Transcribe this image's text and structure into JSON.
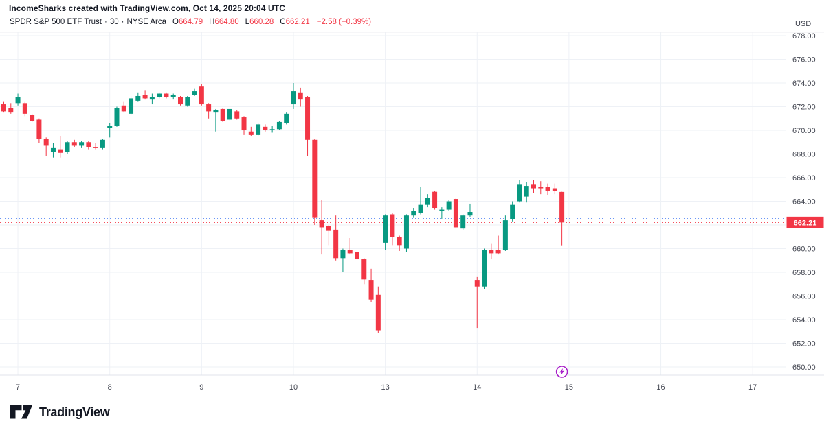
{
  "header": {
    "title": "IncomeSharks created with TradingView.com, Oct 14, 2025 20:04 UTC"
  },
  "legend": {
    "symbol": "SPDR S&P 500 ETF Trust",
    "separator": "·",
    "interval": "30",
    "exchange": "NYSE Arca",
    "open_label": "O",
    "open": "664.79",
    "high_label": "H",
    "high": "664.80",
    "low_label": "L",
    "low": "660.28",
    "close_label": "C",
    "close": "662.21",
    "change": "−2.58 (−0.39%)"
  },
  "price_axis": {
    "currency": "USD",
    "ticks": [
      "678.00",
      "676.00",
      "674.00",
      "672.00",
      "670.00",
      "668.00",
      "666.00",
      "664.00",
      "662.00",
      "660.00",
      "658.00",
      "656.00",
      "654.00",
      "652.00",
      "650.00"
    ],
    "last_price": "662.21"
  },
  "time_axis": {
    "labels": [
      "7",
      "8",
      "9",
      "10",
      "13",
      "14",
      "15",
      "16",
      "17"
    ]
  },
  "footer": {
    "brand": "TradingView"
  },
  "colors": {
    "up": "#089981",
    "down": "#f23645",
    "grid": "#eef1f6",
    "axis_text": "#434651",
    "badge_bg": "#f23645",
    "badge_text": "#ffffff",
    "prev_close_line": "#6a95f5",
    "marker": "#a81ec9",
    "separator": "#e0e3eb"
  },
  "chart_data": {
    "type": "candlestick",
    "title": "SPDR S&P 500 ETF Trust",
    "interval_minutes": 30,
    "exchange": "NYSE Arca",
    "currency": "USD",
    "ylim": [
      650,
      678
    ],
    "y_axis": {
      "min": 650,
      "max": 678,
      "step": 2
    },
    "price_line": 662.21,
    "prev_close_line": 662.55,
    "last_bar": {
      "o": 664.79,
      "h": 664.8,
      "l": 660.28,
      "c": 662.21,
      "change": -2.58,
      "change_pct": -0.39
    },
    "x_ticks": {
      "labels": [
        "7",
        "8",
        "9",
        "10",
        "13",
        "14",
        "15",
        "16",
        "17"
      ],
      "candle_indices": [
        2,
        15,
        28,
        41,
        54,
        67,
        80,
        93,
        106
      ]
    },
    "marker": {
      "symbol": "lightning",
      "candle_index": 79
    },
    "candles": [
      [
        672.2,
        672.4,
        671.5,
        671.6
      ],
      [
        671.9,
        672.3,
        671.4,
        671.5
      ],
      [
        672.3,
        673.1,
        672.1,
        672.8
      ],
      [
        672.3,
        672.4,
        671.2,
        671.4
      ],
      [
        671.3,
        671.4,
        670.7,
        670.8
      ],
      [
        670.9,
        671.0,
        668.9,
        669.3
      ],
      [
        669.3,
        669.4,
        667.8,
        668.7
      ],
      [
        668.2,
        668.9,
        667.7,
        668.5
      ],
      [
        668.4,
        669.5,
        667.7,
        668.1
      ],
      [
        668.2,
        669.1,
        668.0,
        669.0
      ],
      [
        669.0,
        669.2,
        668.6,
        668.7
      ],
      [
        668.7,
        669.1,
        668.5,
        669.0
      ],
      [
        669.0,
        669.1,
        668.4,
        668.6
      ],
      [
        668.6,
        668.9,
        668.4,
        668.5
      ],
      [
        668.5,
        669.3,
        668.4,
        669.2
      ],
      [
        670.2,
        670.6,
        669.4,
        670.4
      ],
      [
        670.4,
        672.0,
        670.3,
        671.9
      ],
      [
        672.1,
        672.4,
        671.5,
        671.6
      ],
      [
        671.4,
        672.9,
        671.3,
        672.7
      ],
      [
        672.5,
        673.2,
        672.4,
        672.9
      ],
      [
        673.0,
        673.4,
        672.6,
        672.7
      ],
      [
        672.6,
        673.1,
        672.2,
        672.8
      ],
      [
        672.8,
        673.2,
        672.7,
        673.1
      ],
      [
        673.1,
        673.2,
        672.7,
        672.8
      ],
      [
        672.8,
        673.1,
        672.6,
        673.0
      ],
      [
        672.8,
        672.9,
        672.1,
        672.2
      ],
      [
        672.1,
        672.9,
        672.0,
        672.8
      ],
      [
        673.0,
        673.5,
        672.9,
        673.3
      ],
      [
        673.7,
        673.9,
        672.1,
        672.2
      ],
      [
        672.2,
        672.3,
        671.0,
        671.6
      ],
      [
        671.5,
        671.8,
        669.9,
        671.7
      ],
      [
        671.8,
        671.9,
        670.7,
        670.8
      ],
      [
        670.9,
        671.8,
        670.8,
        671.8
      ],
      [
        671.6,
        671.7,
        670.9,
        671.0
      ],
      [
        671.1,
        671.2,
        669.6,
        670.0
      ],
      [
        669.9,
        670.3,
        669.5,
        669.6
      ],
      [
        669.6,
        670.6,
        669.5,
        670.5
      ],
      [
        670.3,
        670.5,
        669.9,
        670.0
      ],
      [
        670.0,
        670.4,
        669.8,
        670.1
      ],
      [
        670.1,
        670.8,
        670.0,
        670.7
      ],
      [
        670.6,
        671.5,
        670.5,
        671.4
      ],
      [
        672.2,
        674.0,
        671.8,
        673.3
      ],
      [
        673.2,
        673.6,
        672.0,
        672.6
      ],
      [
        672.8,
        672.9,
        667.8,
        669.2
      ],
      [
        669.2,
        669.3,
        662.0,
        662.6
      ],
      [
        662.4,
        664.1,
        659.5,
        661.8
      ],
      [
        661.9,
        662.0,
        660.3,
        661.5
      ],
      [
        661.6,
        662.8,
        659.0,
        659.2
      ],
      [
        659.2,
        660.0,
        658.0,
        659.9
      ],
      [
        659.9,
        660.9,
        659.5,
        659.6
      ],
      [
        659.7,
        660.0,
        659.0,
        659.1
      ],
      [
        659.1,
        659.2,
        657.0,
        657.4
      ],
      [
        657.3,
        658.3,
        655.5,
        655.7
      ],
      [
        656.1,
        656.8,
        652.9,
        653.1
      ],
      [
        660.5,
        662.9,
        659.9,
        662.8
      ],
      [
        662.9,
        663.0,
        660.3,
        661.0
      ],
      [
        661.0,
        661.1,
        659.8,
        660.3
      ],
      [
        660.0,
        662.9,
        659.7,
        662.8
      ],
      [
        662.8,
        663.4,
        662.6,
        663.2
      ],
      [
        663.0,
        665.2,
        662.9,
        663.7
      ],
      [
        663.7,
        664.6,
        663.5,
        664.3
      ],
      [
        664.8,
        664.9,
        663.3,
        663.4
      ],
      [
        663.2,
        663.5,
        662.5,
        663.3
      ],
      [
        663.3,
        664.1,
        663.2,
        664.0
      ],
      [
        664.2,
        664.3,
        661.7,
        661.8
      ],
      [
        661.7,
        662.9,
        661.6,
        662.8
      ],
      [
        662.8,
        663.8,
        662.7,
        663.1
      ],
      [
        657.3,
        657.6,
        653.3,
        656.8
      ],
      [
        656.8,
        660.0,
        656.6,
        659.9
      ],
      [
        659.9,
        660.4,
        659.1,
        659.6
      ],
      [
        659.9,
        661.1,
        659.5,
        659.6
      ],
      [
        659.9,
        662.8,
        659.8,
        662.4
      ],
      [
        662.5,
        664.0,
        662.3,
        663.7
      ],
      [
        664.0,
        665.8,
        663.9,
        665.4
      ],
      [
        664.4,
        665.6,
        663.9,
        665.3
      ],
      [
        665.4,
        665.8,
        664.7,
        665.1
      ],
      [
        665.2,
        665.7,
        664.6,
        665.1
      ],
      [
        665.2,
        665.5,
        664.5,
        664.9
      ],
      [
        665.1,
        665.5,
        664.6,
        664.9
      ],
      [
        664.79,
        664.8,
        660.28,
        662.21
      ]
    ]
  }
}
